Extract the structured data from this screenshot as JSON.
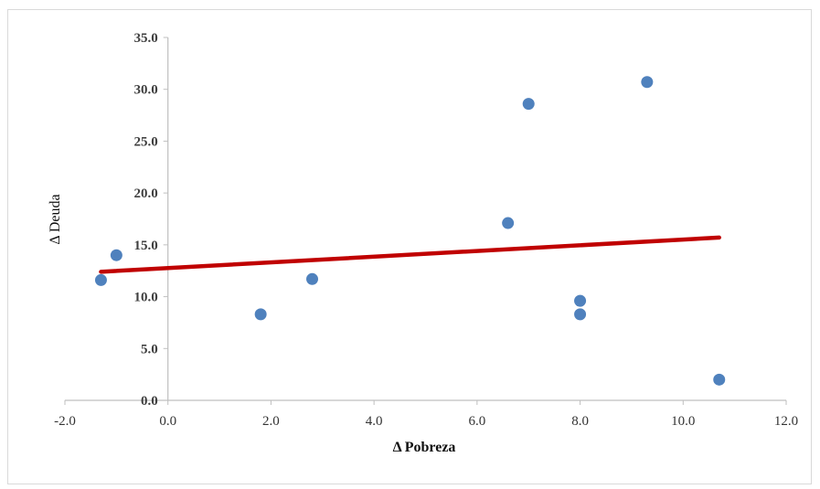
{
  "chart_data": {
    "type": "scatter",
    "title": "",
    "xlabel": "Δ Pobreza",
    "ylabel": "Δ Deuda",
    "xlim": [
      -2.0,
      12.0
    ],
    "ylim": [
      0.0,
      35.0
    ],
    "x_ticks": [
      "-2.0",
      "0.0",
      "2.0",
      "4.0",
      "6.0",
      "8.0",
      "10.0",
      "12.0"
    ],
    "y_ticks": [
      "0.0",
      "5.0",
      "10.0",
      "15.0",
      "20.0",
      "25.0",
      "30.0",
      "35.0"
    ],
    "grid": false,
    "legend": "none",
    "points": [
      {
        "x": -1.3,
        "y": 11.6
      },
      {
        "x": -1.0,
        "y": 14.0
      },
      {
        "x": 1.8,
        "y": 8.3
      },
      {
        "x": 2.8,
        "y": 11.7
      },
      {
        "x": 6.6,
        "y": 17.1
      },
      {
        "x": 7.0,
        "y": 28.6
      },
      {
        "x": 8.0,
        "y": 9.6
      },
      {
        "x": 8.0,
        "y": 8.3
      },
      {
        "x": 9.3,
        "y": 30.7
      },
      {
        "x": 10.7,
        "y": 2.0
      }
    ],
    "trendline": {
      "x": [
        -1.3,
        10.7
      ],
      "y": [
        12.4,
        15.7
      ]
    },
    "colors": {
      "points": "#4f81bd",
      "trendline": "#c00000",
      "axis": "#bfbfbf"
    }
  }
}
